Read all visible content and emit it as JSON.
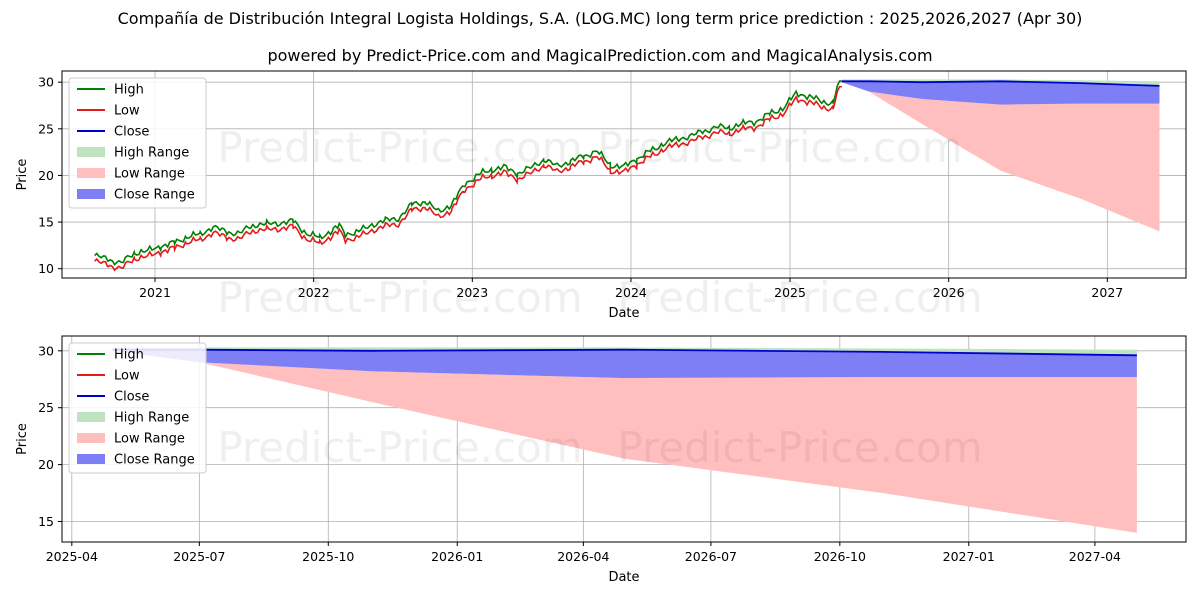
{
  "header": {
    "title": "Compañía de Distribución Integral Logista Holdings, S.A. (LOG.MC) long term price prediction : 2025,2026,2027 (Apr 30)",
    "subtitle": "powered by Predict-Price.com and MagicalPrediction.com and MagicalAnalysis.com"
  },
  "watermark": "Predict-Price.com",
  "colors": {
    "high": "#008000",
    "low": "#e41a1c",
    "close": "#0000cc",
    "high_range": "#bfe3bf",
    "low_range": "#ffbfbf",
    "close_range": "#7f7ff5"
  },
  "legend": {
    "placement": "top-left",
    "items": [
      {
        "label": "High",
        "kind": "line",
        "color": "#008000"
      },
      {
        "label": "Low",
        "kind": "line",
        "color": "#e41a1c"
      },
      {
        "label": "Close",
        "kind": "line",
        "color": "#0000cc"
      },
      {
        "label": "High Range",
        "kind": "patch",
        "color": "#bfe3bf"
      },
      {
        "label": "Low Range",
        "kind": "patch",
        "color": "#ffbfbf"
      },
      {
        "label": "Close Range",
        "kind": "patch",
        "color": "#7f7ff5"
      }
    ]
  },
  "chart_data": [
    {
      "type": "line",
      "xlabel": "Date",
      "ylabel": "Price",
      "xlim": [
        "2020-06-01",
        "2027-07-01"
      ],
      "ylim": [
        9,
        31.2
      ],
      "xticks": [
        "2021",
        "2022",
        "2023",
        "2024",
        "2025",
        "2026",
        "2027"
      ],
      "xtick_dates": [
        "2021-01-01",
        "2022-01-01",
        "2023-01-01",
        "2024-01-01",
        "2025-01-01",
        "2026-01-01",
        "2027-01-01"
      ],
      "yticks": [
        10,
        15,
        20,
        25,
        30
      ],
      "grid": true,
      "history": {
        "dates": [
          "2020-08-15",
          "2020-09-15",
          "2020-10-15",
          "2020-11-15",
          "2020-12-15",
          "2021-01-15",
          "2021-02-15",
          "2021-03-15",
          "2021-04-15",
          "2021-05-15",
          "2021-06-15",
          "2021-07-15",
          "2021-08-15",
          "2021-09-15",
          "2021-10-15",
          "2021-11-15",
          "2021-12-15",
          "2022-01-15",
          "2022-02-15",
          "2022-03-01",
          "2022-03-15",
          "2022-04-15",
          "2022-05-15",
          "2022-06-15",
          "2022-07-15",
          "2022-08-15",
          "2022-09-15",
          "2022-10-15",
          "2022-11-15",
          "2022-12-15",
          "2023-01-15",
          "2023-02-15",
          "2023-03-15",
          "2023-04-15",
          "2023-05-15",
          "2023-06-15",
          "2023-07-15",
          "2023-08-15",
          "2023-09-15",
          "2023-10-15",
          "2023-11-15",
          "2023-12-15",
          "2024-01-15",
          "2024-02-15",
          "2024-03-15",
          "2024-04-15",
          "2024-05-15",
          "2024-06-15",
          "2024-07-15",
          "2024-08-15",
          "2024-09-15",
          "2024-10-15",
          "2024-11-15",
          "2024-12-15",
          "2025-01-15",
          "2025-02-15",
          "2025-03-15",
          "2025-04-10",
          "2025-04-20",
          "2025-04-30"
        ],
        "low": [
          10.8,
          10.4,
          10.0,
          11.1,
          11.3,
          11.8,
          12.2,
          12.8,
          13.1,
          13.9,
          13.3,
          13.2,
          14.1,
          14.2,
          14.3,
          14.5,
          13.2,
          12.7,
          13.6,
          14.0,
          13.1,
          13.4,
          14.1,
          14.6,
          14.8,
          16.3,
          16.6,
          15.5,
          16.3,
          18.5,
          19.5,
          20.0,
          20.3,
          19.6,
          20.2,
          21.1,
          20.4,
          20.9,
          21.5,
          22.0,
          20.5,
          20.3,
          21.2,
          22.0,
          22.8,
          23.3,
          23.6,
          24.1,
          24.6,
          24.5,
          25.0,
          25.2,
          26.0,
          26.6,
          28.2,
          27.9,
          27.3,
          27.2,
          28.8,
          29.6
        ],
        "high": [
          11.4,
          11.0,
          10.6,
          11.7,
          11.9,
          12.4,
          12.8,
          13.4,
          13.7,
          14.5,
          13.9,
          13.8,
          14.7,
          14.8,
          14.9,
          15.1,
          13.8,
          13.3,
          14.2,
          14.6,
          13.7,
          14.0,
          14.7,
          15.2,
          15.4,
          16.9,
          17.2,
          16.1,
          16.9,
          19.1,
          20.1,
          20.6,
          20.9,
          20.2,
          20.8,
          21.7,
          21.0,
          21.5,
          22.1,
          22.6,
          21.1,
          20.9,
          21.8,
          22.6,
          23.4,
          23.9,
          24.2,
          24.7,
          25.2,
          25.1,
          25.6,
          25.8,
          26.6,
          27.2,
          28.8,
          28.5,
          27.9,
          27.8,
          29.4,
          30.2
        ]
      },
      "forecast": {
        "dates": [
          "2025-04-30",
          "2025-07-01",
          "2025-11-01",
          "2026-05-01",
          "2026-11-01",
          "2027-05-01"
        ],
        "high": [
          30.3,
          30.3,
          30.3,
          30.3,
          30.2,
          30.1
        ],
        "close": [
          30.1,
          30.1,
          30.0,
          30.1,
          29.9,
          29.6
        ],
        "close_low": [
          30.0,
          29.0,
          28.2,
          27.6,
          27.7,
          27.7
        ],
        "low": [
          30.0,
          29.0,
          25.5,
          20.5,
          17.5,
          14.0
        ]
      }
    },
    {
      "type": "line",
      "xlabel": "Date",
      "ylabel": "Price",
      "xlim": [
        "2025-03-25",
        "2027-06-05"
      ],
      "ylim": [
        13.2,
        31.3
      ],
      "xticks": [
        "2025-04",
        "2025-07",
        "2025-10",
        "2026-01",
        "2026-04",
        "2026-07",
        "2026-10",
        "2027-01",
        "2027-04"
      ],
      "xtick_dates": [
        "2025-04-01",
        "2025-07-01",
        "2025-10-01",
        "2026-01-01",
        "2026-04-01",
        "2026-07-01",
        "2026-10-01",
        "2027-01-01",
        "2027-04-01"
      ],
      "yticks": [
        15,
        20,
        25,
        30
      ],
      "grid": true,
      "forecast": {
        "dates": [
          "2025-04-30",
          "2025-07-01",
          "2025-11-01",
          "2026-05-01",
          "2026-11-01",
          "2027-05-01"
        ],
        "high": [
          30.3,
          30.3,
          30.3,
          30.3,
          30.2,
          30.1
        ],
        "close": [
          30.1,
          30.1,
          30.0,
          30.1,
          29.9,
          29.6
        ],
        "close_low": [
          30.0,
          29.0,
          28.2,
          27.6,
          27.7,
          27.7
        ],
        "low": [
          30.0,
          29.0,
          25.5,
          20.5,
          17.5,
          14.0
        ]
      }
    }
  ]
}
